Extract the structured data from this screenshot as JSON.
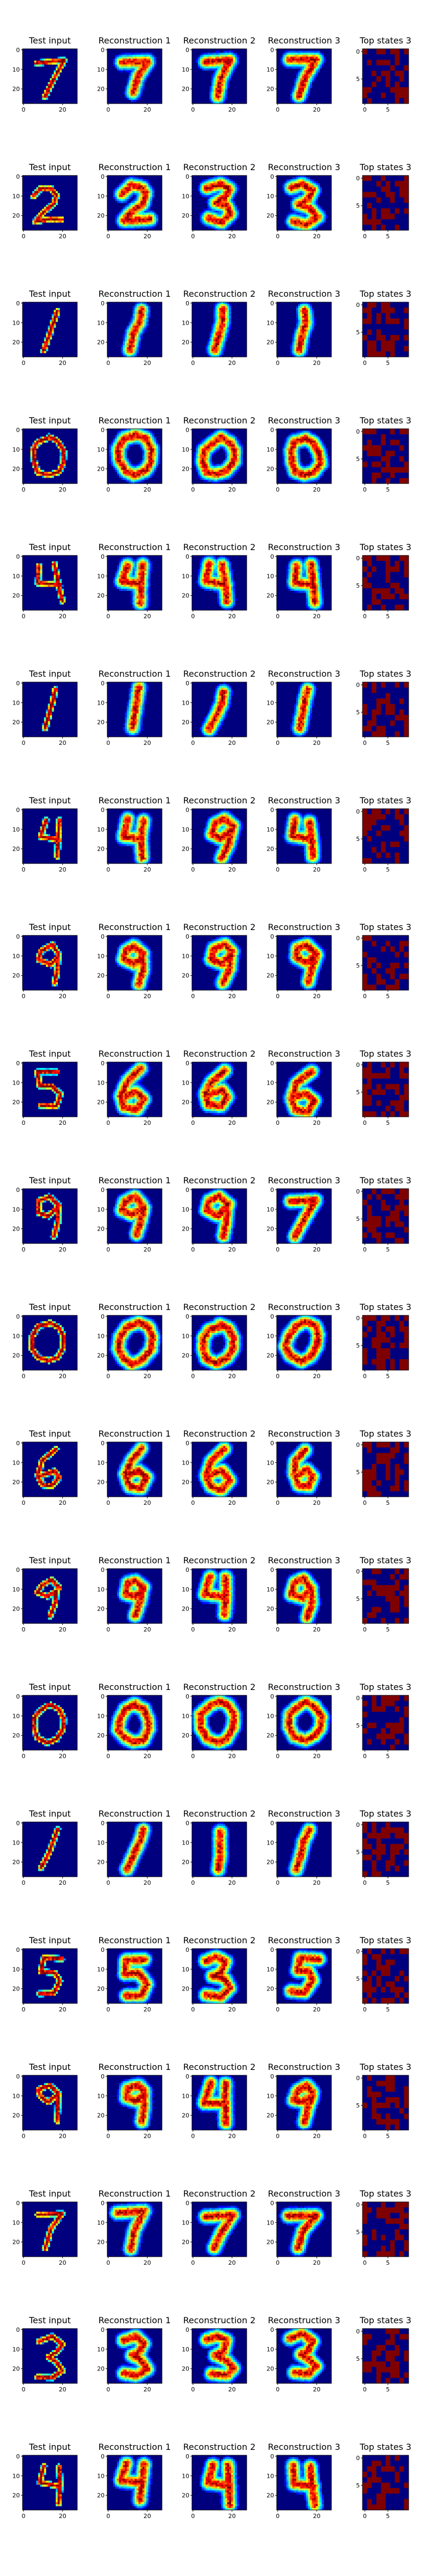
{
  "chart_data": {
    "type": "heatmap",
    "layout": {
      "rows": 20,
      "columns": 5
    },
    "panel_titles": [
      "Test input",
      "Reconstruction 1",
      "Reconstruction 2",
      "Reconstruction 3",
      "Top states 3"
    ],
    "image_axes": {
      "xticks": [
        "0",
        "20"
      ],
      "yticks": [
        "0",
        "10",
        "20"
      ],
      "xlim": [
        0,
        27
      ],
      "ylim": [
        27,
        0
      ]
    },
    "states_axes": {
      "xticks": [
        "0",
        "5"
      ],
      "yticks": [
        "0",
        "5"
      ],
      "xlim": [
        0,
        9
      ],
      "ylim": [
        9,
        0
      ]
    },
    "colormap": "jet",
    "colormap_stops": [
      "#00007f",
      "#0000ff",
      "#007fff",
      "#00ffff",
      "#7fff7f",
      "#ffff00",
      "#ff7f00",
      "#ff0000",
      "#7f0000"
    ],
    "states_colors": [
      "#00007f",
      "#7f0000"
    ],
    "rows": [
      {
        "digit": 7,
        "recon_digits": [
          7,
          7,
          7
        ]
      },
      {
        "digit": 2,
        "recon_digits": [
          2,
          3,
          3
        ]
      },
      {
        "digit": 1,
        "recon_digits": [
          1,
          1,
          1
        ]
      },
      {
        "digit": 0,
        "recon_digits": [
          0,
          0,
          0
        ]
      },
      {
        "digit": 4,
        "recon_digits": [
          4,
          4,
          4
        ]
      },
      {
        "digit": 1,
        "recon_digits": [
          1,
          1,
          1
        ]
      },
      {
        "digit": 4,
        "recon_digits": [
          4,
          9,
          4
        ]
      },
      {
        "digit": 9,
        "recon_digits": [
          9,
          9,
          9
        ]
      },
      {
        "digit": 5,
        "recon_digits": [
          6,
          6,
          6
        ]
      },
      {
        "digit": 9,
        "recon_digits": [
          9,
          9,
          7
        ]
      },
      {
        "digit": 0,
        "recon_digits": [
          0,
          0,
          0
        ]
      },
      {
        "digit": 6,
        "recon_digits": [
          6,
          6,
          6
        ]
      },
      {
        "digit": 9,
        "recon_digits": [
          9,
          4,
          9
        ]
      },
      {
        "digit": 0,
        "recon_digits": [
          0,
          0,
          0
        ]
      },
      {
        "digit": 1,
        "recon_digits": [
          1,
          1,
          1
        ]
      },
      {
        "digit": 5,
        "recon_digits": [
          5,
          3,
          5
        ]
      },
      {
        "digit": 9,
        "recon_digits": [
          9,
          4,
          9
        ]
      },
      {
        "digit": 7,
        "recon_digits": [
          7,
          7,
          7
        ]
      },
      {
        "digit": 3,
        "recon_digits": [
          3,
          3,
          3
        ]
      },
      {
        "digit": 4,
        "recon_digits": [
          4,
          4,
          4
        ]
      }
    ]
  }
}
